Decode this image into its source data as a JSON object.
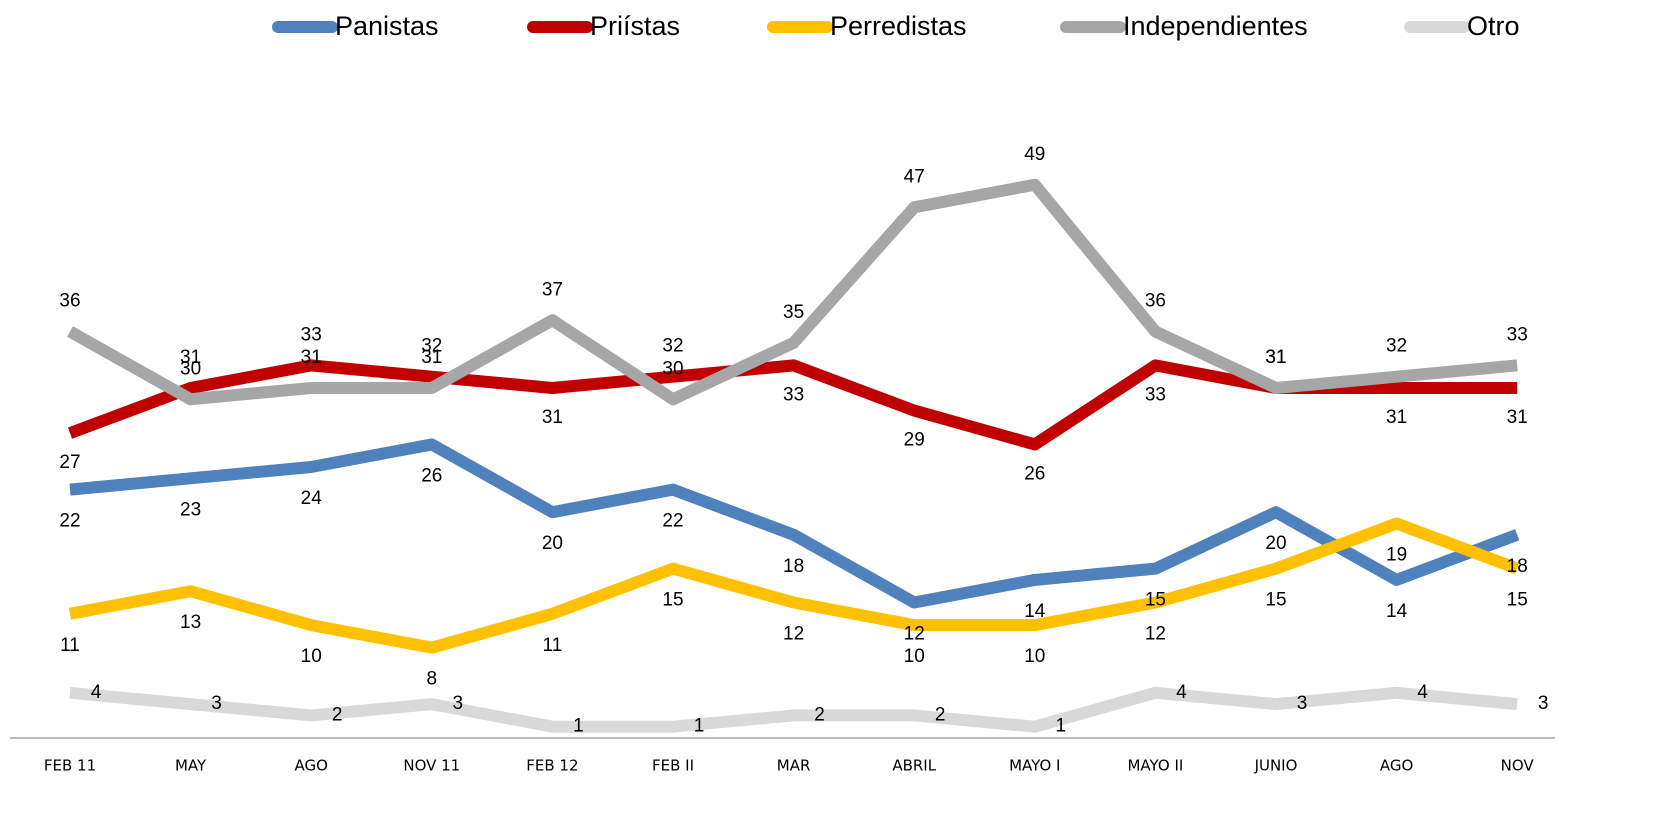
{
  "chart_data": {
    "type": "line",
    "categories": [
      "FEB 11",
      "MAY",
      "AGO",
      "NOV 11",
      "FEB  12",
      "FEB II",
      "MAR",
      "ABRIL",
      "MAYO I",
      "MAYO II",
      "JUNIO",
      "AGO",
      "NOV"
    ],
    "series": [
      {
        "name": "Panistas",
        "color": "#4f81bd",
        "values": [
          22,
          23,
          24,
          26,
          20,
          22,
          18,
          12,
          14,
          15,
          20,
          14,
          18
        ]
      },
      {
        "name": "Priístas",
        "color": "#c00000",
        "values": [
          27,
          31,
          33,
          32,
          31,
          32,
          33,
          29,
          26,
          33,
          31,
          31,
          31
        ]
      },
      {
        "name": "Perredistas",
        "color": "#ffc000",
        "values": [
          11,
          13,
          10,
          8,
          11,
          15,
          12,
          10,
          10,
          12,
          15,
          19,
          15
        ]
      },
      {
        "name": "Independientes",
        "color": "#a6a6a6",
        "values": [
          36,
          30,
          31,
          31,
          37,
          30,
          35,
          47,
          49,
          36,
          31,
          32,
          33
        ]
      },
      {
        "name": "Otro",
        "color": "#d9d9d9",
        "values": [
          4,
          3,
          2,
          3,
          1,
          1,
          2,
          2,
          1,
          4,
          3,
          4,
          3
        ]
      }
    ],
    "ylim": [
      0,
      55
    ]
  }
}
